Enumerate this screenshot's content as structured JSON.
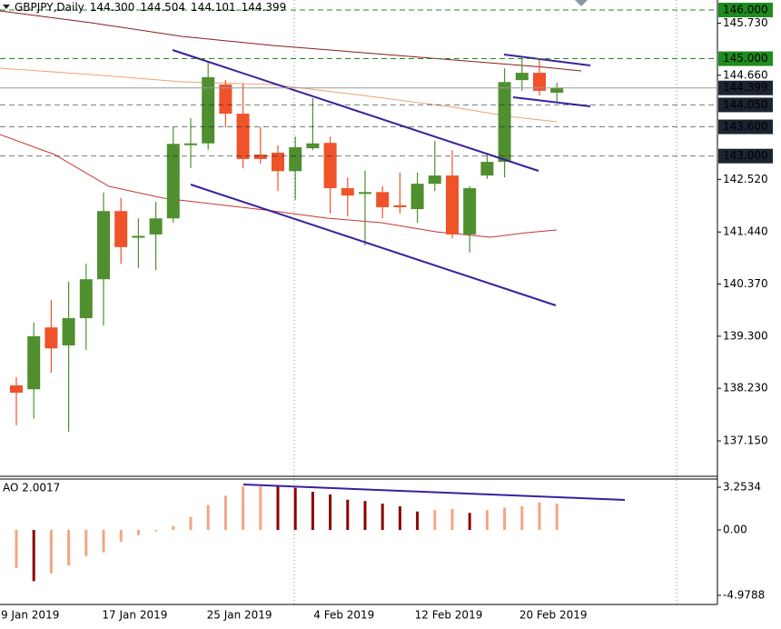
{
  "chart_data": [
    {
      "type": "candlestick",
      "title": "GBPJPY,Daily",
      "title_values": [
        "144.300",
        "144.504",
        "144.101",
        "144.399"
      ],
      "categories": [
        null,
        "9 Jan 2019",
        null,
        null,
        null,
        null,
        null,
        "17 Jan 2019",
        null,
        null,
        null,
        null,
        null,
        "25 Jan 2019",
        null,
        null,
        null,
        null,
        null,
        "4 Feb 2019",
        null,
        null,
        null,
        null,
        null,
        "12 Feb 2019",
        null,
        null,
        null,
        null,
        null,
        "20 Feb 2019"
      ],
      "open": [
        138.29,
        138.21,
        139.48,
        139.11,
        139.67,
        140.47,
        141.87,
        141.33,
        141.39,
        141.72,
        143.24,
        143.26,
        144.47,
        143.87,
        143.03,
        143.07,
        142.69,
        143.16,
        143.27,
        142.34,
        142.24,
        142.26,
        141.99,
        141.91,
        142.43,
        142.6,
        141.39,
        142.6,
        142.88,
        144.56,
        144.71,
        144.3
      ],
      "high": [
        138.46,
        139.58,
        140.04,
        140.42,
        140.79,
        142.25,
        142.14,
        141.72,
        142.06,
        143.59,
        143.78,
        144.94,
        144.56,
        144.49,
        143.59,
        143.22,
        143.4,
        144.19,
        143.4,
        142.56,
        142.7,
        142.38,
        142.66,
        142.66,
        143.31,
        143.12,
        142.38,
        143.03,
        144.8,
        144.99,
        144.99,
        144.504
      ],
      "low": [
        137.47,
        137.61,
        138.55,
        137.34,
        139.02,
        139.52,
        140.79,
        140.7,
        140.66,
        141.63,
        142.75,
        143.13,
        143.59,
        142.75,
        142.84,
        142.28,
        142.1,
        143.12,
        141.82,
        141.76,
        141.16,
        141.72,
        141.82,
        141.63,
        142.28,
        141.31,
        141.02,
        142.53,
        142.56,
        144.34,
        144.24,
        144.101
      ],
      "close": [
        138.14,
        139.3,
        139.05,
        139.67,
        140.47,
        141.87,
        141.13,
        141.36,
        141.72,
        143.25,
        143.26,
        144.62,
        143.87,
        142.94,
        142.94,
        142.69,
        143.18,
        143.26,
        142.34,
        142.19,
        142.26,
        141.95,
        141.95,
        142.43,
        142.6,
        141.39,
        142.34,
        142.88,
        144.52,
        144.71,
        144.34,
        144.399
      ],
      "up_color": "#4f8f2f",
      "down_color": "#f0522a",
      "ylim": [
        136.46,
        146.205
      ],
      "yticks": [
        {
          "value": 145.73,
          "label": "145.730"
        },
        {
          "value": 144.66,
          "label": "144.660"
        },
        {
          "value": 142.52,
          "label": "142.520"
        },
        {
          "value": 141.44,
          "label": "141.440"
        },
        {
          "value": 140.37,
          "label": "140.370"
        },
        {
          "value": 139.3,
          "label": "139.300"
        },
        {
          "value": 138.23,
          "label": "138.230"
        },
        {
          "value": 137.15,
          "label": "137.150"
        }
      ],
      "levels": [
        {
          "value": 146,
          "label": "146.000",
          "color": "#1e8c1e",
          "dashed": true
        },
        {
          "value": 145,
          "label": "145.000",
          "color": "#1e8c1e",
          "dashed": true
        },
        {
          "value": 144.399,
          "label": "144.399",
          "color": "#1b2430",
          "dashed": false
        },
        {
          "value": 144.05,
          "label": "144.050",
          "color": "#1b2430",
          "dashed": true
        },
        {
          "value": 143.6,
          "label": "143.600",
          "color": "#1b2430",
          "dashed": true
        },
        {
          "value": 143,
          "label": "143.000",
          "color": "#1b2430",
          "dashed": true
        }
      ]
    },
    {
      "type": "bar",
      "title": "AO 2.0017",
      "values": [
        -2.9,
        -3.9,
        -3.3,
        -2.7,
        -2.0,
        -1.7,
        -0.9,
        -0.4,
        -0.1,
        0.3,
        1.0,
        1.9,
        2.6,
        3.3,
        3.3,
        3.3,
        3.2,
        2.9,
        2.7,
        2.3,
        2.2,
        2.0,
        1.8,
        1.4,
        1.5,
        1.6,
        1.3,
        1.5,
        1.7,
        1.8,
        2.1,
        2.0017
      ],
      "colors": [
        "#f4a582",
        "#8b0000",
        "#f4a582",
        "#f4a582",
        "#f4a582",
        "#f4a582",
        "#f4a582",
        "#f4a582",
        "#f4a582",
        "#f4a582",
        "#f4a582",
        "#f4a582",
        "#f4a582",
        "#f4a582",
        "#f4a582",
        "#8b0000",
        "#8b0000",
        "#8b0000",
        "#8b0000",
        "#8b0000",
        "#8b0000",
        "#8b0000",
        "#8b0000",
        "#8b0000",
        "#f4a582",
        "#f4a582",
        "#8b0000",
        "#f4a582",
        "#f4a582",
        "#f4a582",
        "#f4a582",
        "#f4a582"
      ],
      "ylim": [
        -5.672,
        3.874
      ],
      "yticks": [
        3.2534,
        {
          "value": 0,
          "label": "0.00"
        },
        -4.9788
      ]
    }
  ]
}
